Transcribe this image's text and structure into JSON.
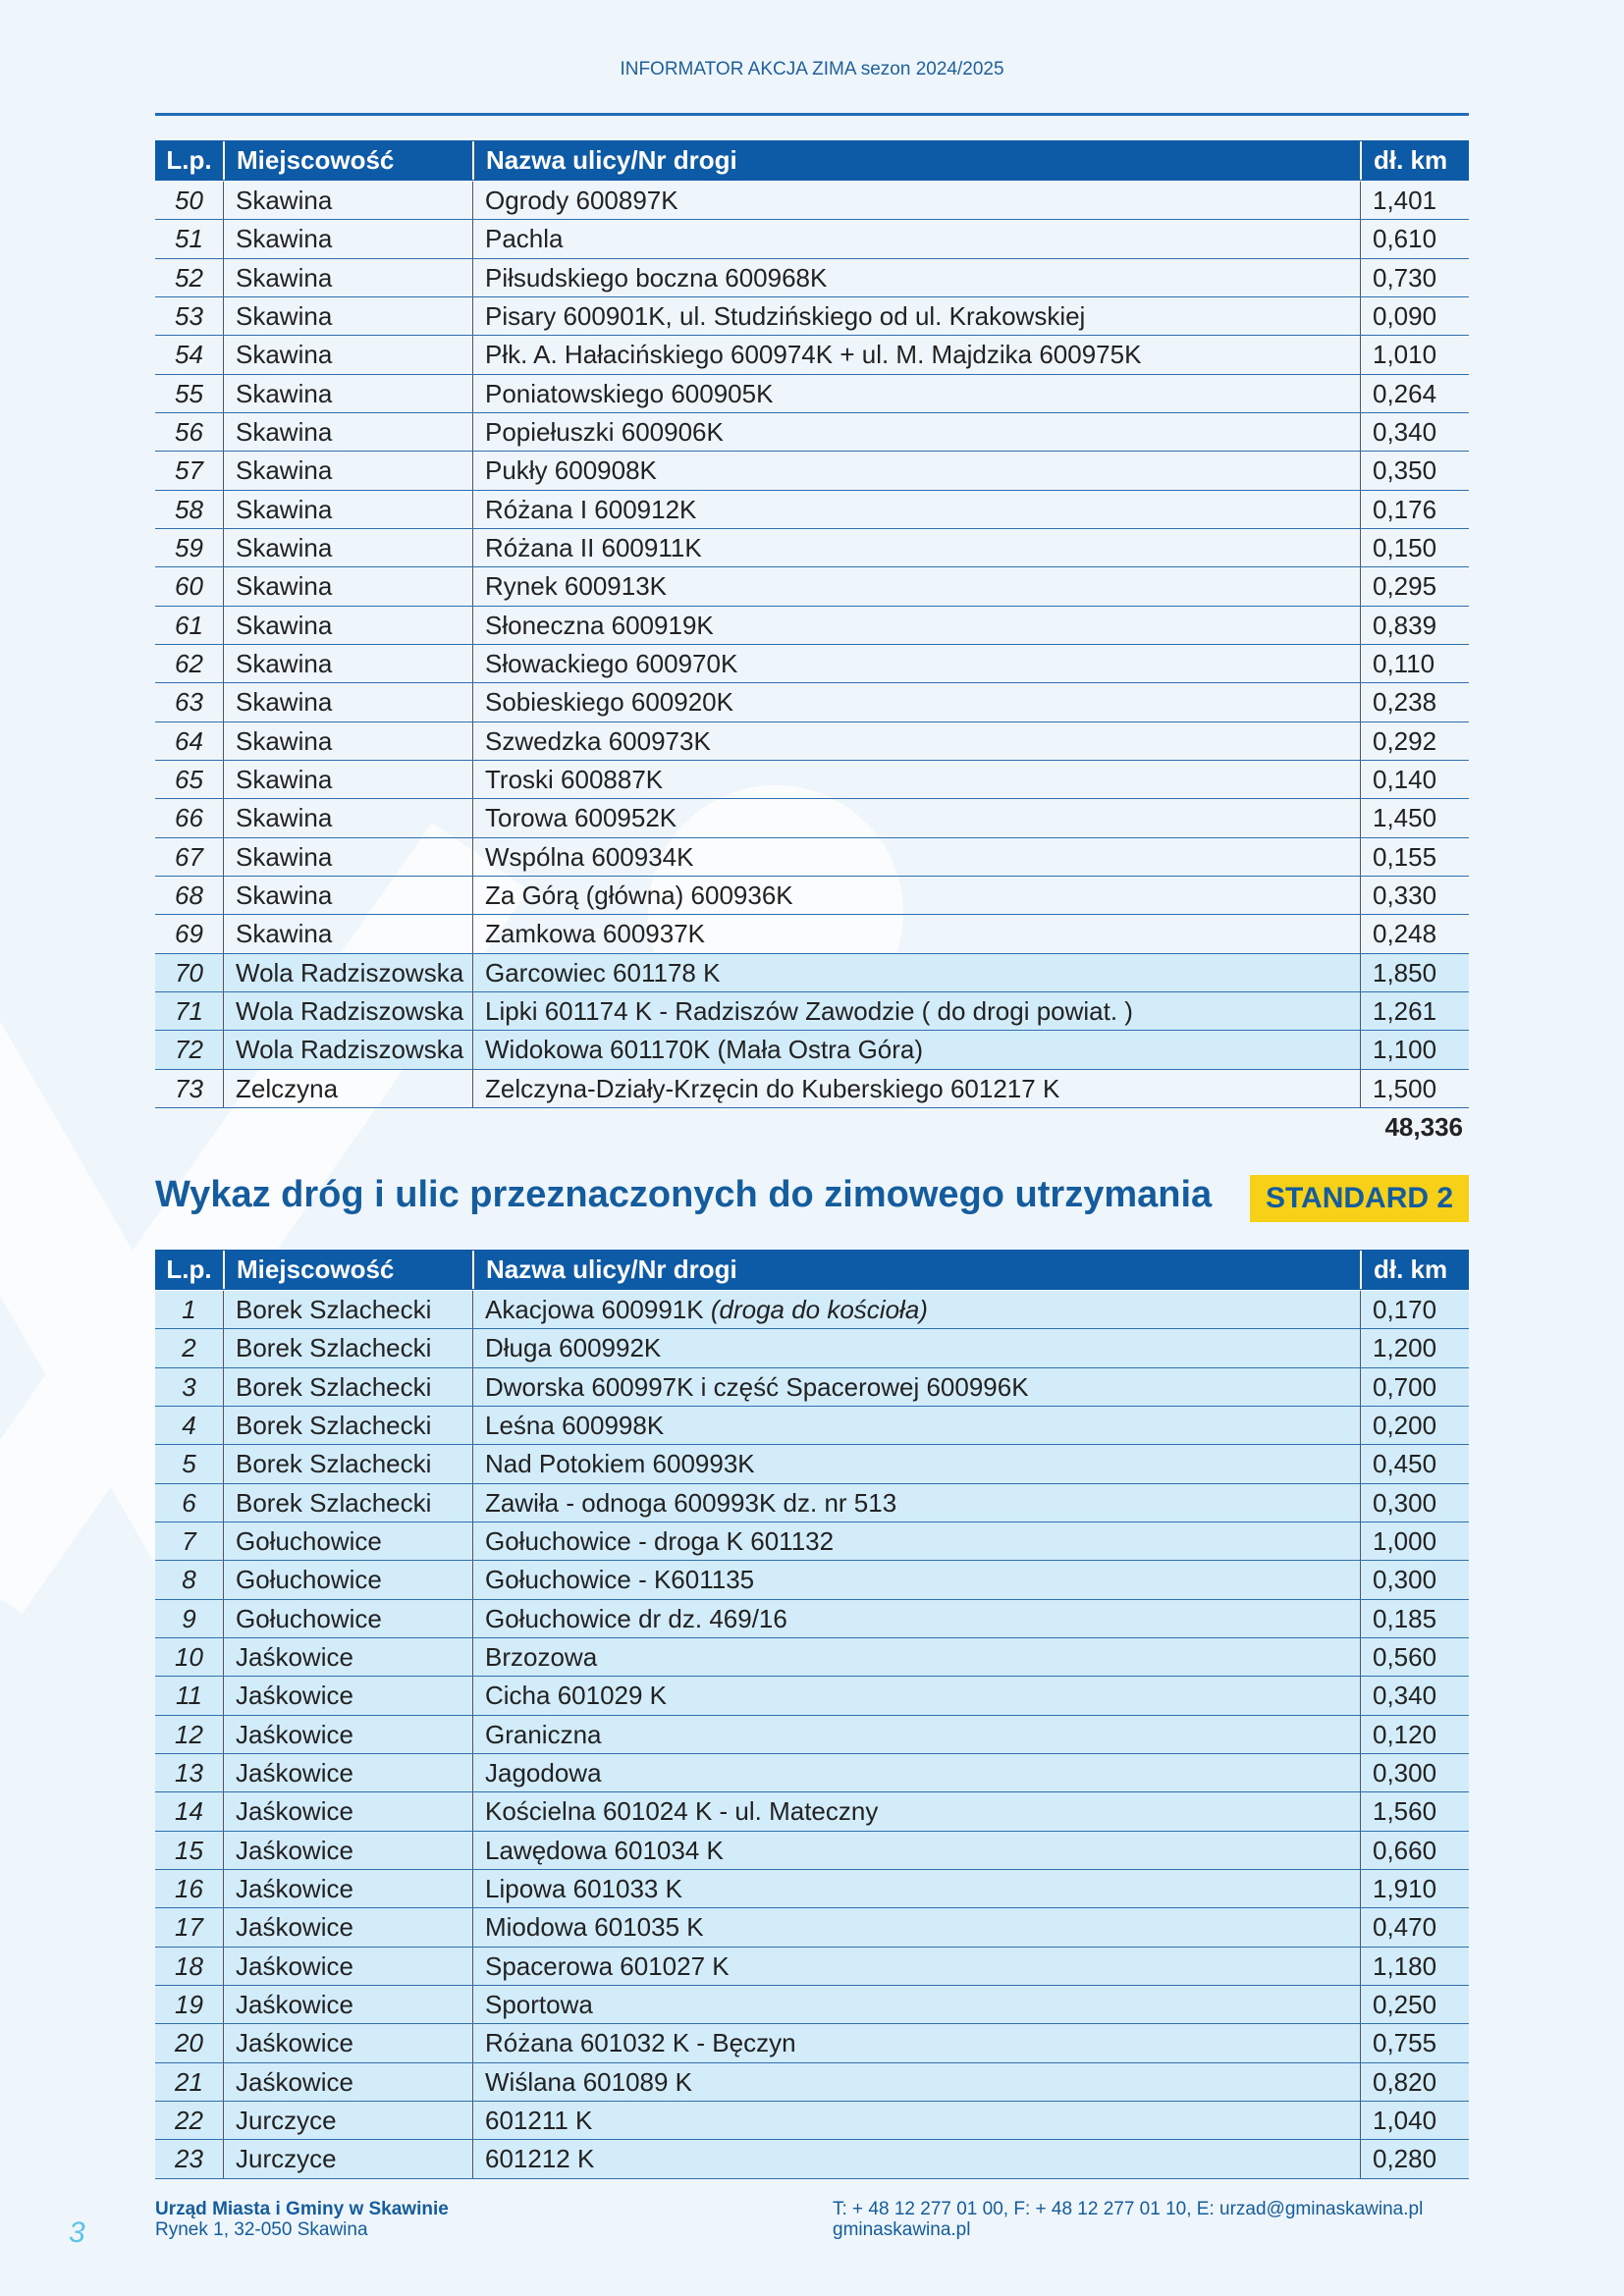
{
  "header": {
    "title": "INFORMATOR AKCJA ZIMA sezon 2024/2025"
  },
  "tables": [
    {
      "columns": [
        "L.p.",
        "Miejscowość",
        "Nazwa ulicy/Nr drogi",
        "dł. km"
      ],
      "highlighted_rows": [
        20,
        21,
        22
      ],
      "rows": [
        [
          "50",
          "Skawina",
          "Ogrody 600897K",
          "1,401"
        ],
        [
          "51",
          "Skawina",
          "Pachla",
          "0,610"
        ],
        [
          "52",
          "Skawina",
          "Piłsudskiego boczna 600968K",
          "0,730"
        ],
        [
          "53",
          "Skawina",
          "Pisary 600901K, ul. Studzińskiego od ul. Krakowskiej",
          "0,090"
        ],
        [
          "54",
          "Skawina",
          "Płk. A. Hałacińskiego 600974K + ul. M. Majdzika 600975K",
          "1,010"
        ],
        [
          "55",
          "Skawina",
          "Poniatowskiego 600905K",
          "0,264"
        ],
        [
          "56",
          "Skawina",
          "Popiełuszki 600906K",
          "0,340"
        ],
        [
          "57",
          "Skawina",
          "Pukły 600908K",
          "0,350"
        ],
        [
          "58",
          "Skawina",
          "Różana I 600912K",
          "0,176"
        ],
        [
          "59",
          "Skawina",
          "Różana II 600911K",
          "0,150"
        ],
        [
          "60",
          "Skawina",
          "Rynek 600913K",
          "0,295"
        ],
        [
          "61",
          "Skawina",
          "Słoneczna 600919K",
          "0,839"
        ],
        [
          "62",
          "Skawina",
          "Słowackiego 600970K",
          "0,110"
        ],
        [
          "63",
          "Skawina",
          "Sobieskiego 600920K",
          "0,238"
        ],
        [
          "64",
          "Skawina",
          "Szwedzka 600973K",
          "0,292"
        ],
        [
          "65",
          "Skawina",
          "Troski 600887K",
          "0,140"
        ],
        [
          "66",
          "Skawina",
          "Torowa 600952K",
          "1,450"
        ],
        [
          "67",
          "Skawina",
          "Wspólna 600934K",
          "0,155"
        ],
        [
          "68",
          "Skawina",
          "Za Górą (główna) 600936K",
          "0,330"
        ],
        [
          "69",
          "Skawina",
          "Zamkowa 600937K",
          "0,248"
        ],
        [
          "70",
          "Wola Radziszowska",
          "Garcowiec 601178 K",
          "1,850"
        ],
        [
          "71",
          "Wola Radziszowska",
          "Lipki 601174 K - Radziszów Zawodzie ( do drogi powiat. )",
          "1,261"
        ],
        [
          "72",
          "Wola Radziszowska",
          "Widokowa 601170K (Mała Ostra Góra)",
          "1,100"
        ],
        [
          "73",
          "Zelczyna",
          "Zelczyna-Działy-Krzęcin do Kuberskiego 601217 K",
          "1,500"
        ]
      ],
      "total": "48,336"
    },
    {
      "columns": [
        "L.p.",
        "Miejscowość",
        "Nazwa ulicy/Nr drogi",
        "dł. km"
      ],
      "highlighted_rows": [
        0,
        1,
        2,
        3,
        4,
        5,
        6,
        7,
        8,
        9,
        10,
        11,
        12,
        13,
        14,
        15,
        16,
        17,
        18,
        19,
        20,
        21,
        22
      ],
      "rows": [
        [
          "1",
          "Borek Szlachecki",
          {
            "text": "Akacjowa 600991K",
            "note": "(droga do kościoła)"
          },
          "0,170"
        ],
        [
          "2",
          "Borek Szlachecki",
          "Długa 600992K",
          "1,200"
        ],
        [
          "3",
          "Borek Szlachecki",
          "Dworska 600997K i część Spacerowej 600996K",
          "0,700"
        ],
        [
          "4",
          "Borek Szlachecki",
          "Leśna 600998K",
          "0,200"
        ],
        [
          "5",
          "Borek Szlachecki",
          "Nad Potokiem 600993K",
          "0,450"
        ],
        [
          "6",
          "Borek Szlachecki",
          "Zawiła - odnoga 600993K dz. nr 513",
          "0,300"
        ],
        [
          "7",
          "Gołuchowice",
          "Gołuchowice - droga K 601132",
          "1,000"
        ],
        [
          "8",
          "Gołuchowice",
          "Gołuchowice - K601135",
          "0,300"
        ],
        [
          "9",
          "Gołuchowice",
          "Gołuchowice dr dz. 469/16",
          "0,185"
        ],
        [
          "10",
          "Jaśkowice",
          "Brzozowa",
          "0,560"
        ],
        [
          "11",
          "Jaśkowice",
          "Cicha 601029 K",
          "0,340"
        ],
        [
          "12",
          "Jaśkowice",
          "Graniczna",
          "0,120"
        ],
        [
          "13",
          "Jaśkowice",
          "Jagodowa",
          "0,300"
        ],
        [
          "14",
          "Jaśkowice",
          "Kościelna 601024 K - ul. Mateczny",
          "1,560"
        ],
        [
          "15",
          "Jaśkowice",
          "Lawędowa 601034 K",
          "0,660"
        ],
        [
          "16",
          "Jaśkowice",
          "Lipowa 601033 K",
          "1,910"
        ],
        [
          "17",
          "Jaśkowice",
          "Miodowa 601035 K",
          "0,470"
        ],
        [
          "18",
          "Jaśkowice",
          "Spacerowa 601027 K",
          "1,180"
        ],
        [
          "19",
          "Jaśkowice",
          "Sportowa",
          "0,250"
        ],
        [
          "20",
          "Jaśkowice",
          "Różana 601032 K - Bęczyn",
          "0,755"
        ],
        [
          "21",
          "Jaśkowice",
          "Wiślana 601089 K",
          "0,820"
        ],
        [
          "22",
          "Jurczyce",
          "601211 K",
          "1,040"
        ],
        [
          "23",
          "Jurczyce",
          "601212 K",
          "0,280"
        ]
      ]
    }
  ],
  "section": {
    "title": "Wykaz dróg i ulic przeznaczonych do zimowego utrzymania",
    "badge": "STANDARD 2"
  },
  "footer": {
    "office": "Urząd Miasta i Gminy w Skawinie",
    "address": "Rynek 1, 32-050 Skawina",
    "contact": "T: + 48 12 277 01 00, F: + 48 12 277 01 10, E: urzad@gminaskawina.pl",
    "web": "gminaskawina.pl",
    "page": "3"
  }
}
